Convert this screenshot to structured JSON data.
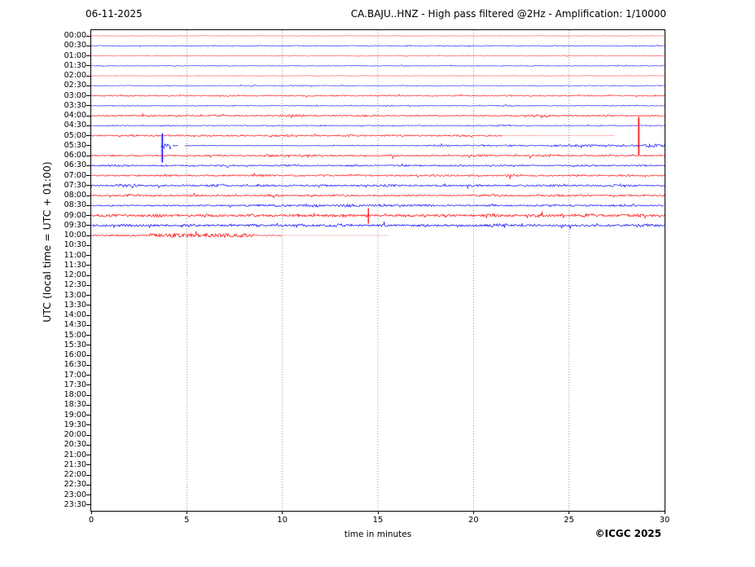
{
  "chart_data": {
    "type": "helicorder-seismogram",
    "date": "06-11-2025",
    "title": "CA.BAJU..HNZ - High pass filtered @2Hz - Amplification: 1/10000",
    "ylabel": "UTC (local time = UTC + 01:00)",
    "xlabel": "time in minutes",
    "credit": "©ICGC 2025",
    "x_range_minutes": [
      0,
      30
    ],
    "x_ticks": [
      0,
      5,
      10,
      15,
      20,
      25,
      30
    ],
    "grid_minutes": [
      5,
      10,
      15,
      20,
      25
    ],
    "minutes_per_row": 30,
    "trace_colors": {
      "r": "#ff0000",
      "b": "#0000ff"
    },
    "halo_colors": {
      "r": "#ffaaaa",
      "b": "#aaaaff"
    },
    "rows": [
      {
        "t": "00:00",
        "c": "r",
        "segs": [
          [
            0,
            30,
            0.35,
            0.5
          ]
        ],
        "bursts": []
      },
      {
        "t": "00:30",
        "c": "b",
        "segs": [
          [
            0,
            30,
            0.45,
            0.7
          ]
        ],
        "bursts": [
          [
            9,
            0.4,
            0.3
          ],
          [
            19,
            0.4,
            0.3
          ]
        ]
      },
      {
        "t": "01:00",
        "c": "r",
        "segs": [
          [
            0,
            30,
            0.45,
            0.55
          ]
        ],
        "bursts": [
          [
            14,
            0.4,
            0.3
          ]
        ]
      },
      {
        "t": "01:30",
        "c": "b",
        "segs": [
          [
            0,
            30,
            0.5,
            0.65
          ]
        ],
        "bursts": [
          [
            7,
            0.4,
            0.3
          ],
          [
            23,
            0.4,
            0.3
          ]
        ]
      },
      {
        "t": "02:00",
        "c": "r",
        "segs": [
          [
            0,
            30,
            0.4,
            0.5
          ]
        ],
        "bursts": []
      },
      {
        "t": "02:30",
        "c": "b",
        "segs": [
          [
            0,
            30,
            0.5,
            0.65
          ]
        ],
        "bursts": [
          [
            11,
            0.4,
            0.3
          ]
        ]
      },
      {
        "t": "03:00",
        "c": "r",
        "segs": [
          [
            0,
            30,
            0.65,
            0.75
          ]
        ],
        "bursts": [
          [
            7,
            0.4,
            0.4
          ],
          [
            13,
            0.3,
            0.4
          ],
          [
            22,
            0.4,
            0.4
          ]
        ]
      },
      {
        "t": "03:30",
        "c": "b",
        "segs": [
          [
            0,
            30,
            0.5,
            0.7
          ]
        ],
        "bursts": [
          [
            15.5,
            0.3,
            0.5
          ],
          [
            21.8,
            0.4,
            0.6
          ]
        ]
      },
      {
        "t": "04:00",
        "c": "r",
        "segs": [
          [
            0,
            30,
            0.75,
            0.8
          ]
        ],
        "bursts": [
          [
            3,
            0.5,
            0.5
          ],
          [
            10.8,
            0.5,
            0.8
          ],
          [
            14.3,
            0.3,
            0.6
          ],
          [
            23.3,
            0.6,
            1.0
          ],
          [
            27,
            0.3,
            0.5
          ]
        ]
      },
      {
        "t": "04:30",
        "c": "b",
        "segs": [
          [
            0,
            30,
            0.55,
            0.7
          ]
        ],
        "bursts": [
          [
            4,
            0.4,
            0.4
          ],
          [
            12,
            0.3,
            0.4
          ],
          [
            21.5,
            0.4,
            0.7
          ],
          [
            26.5,
            0.3,
            0.4
          ]
        ]
      },
      {
        "t": "05:00",
        "c": "r",
        "segs": [
          [
            0,
            21.5,
            0.8,
            0.8
          ],
          [
            21.5,
            27.4,
            0.12,
            0.35
          ]
        ],
        "bursts": [
          [
            2,
            0.5,
            0.5
          ],
          [
            6,
            0.4,
            0.5
          ],
          [
            10,
            0.5,
            0.6
          ],
          [
            13.5,
            0.4,
            0.5
          ],
          [
            16,
            0.3,
            0.4
          ],
          [
            19.5,
            0.4,
            0.5
          ]
        ],
        "spikes": [
          {
            "m": 28.65,
            "up": 23,
            "down": 24,
            "halo": true
          }
        ]
      },
      {
        "t": "05:30",
        "c": "b",
        "segs": [
          [
            3.64,
            4.2,
            2.2,
            0.85
          ],
          [
            4.27,
            4.55,
            0.12,
            0.9
          ],
          [
            4.9,
            10,
            0.28,
            0.8
          ],
          [
            10,
            17,
            0.45,
            0.75
          ],
          [
            17,
            24,
            0.7,
            0.75
          ],
          [
            24,
            30,
            1.1,
            0.8
          ]
        ],
        "bursts": [
          [
            13.8,
            0.3,
            0.4
          ],
          [
            18.5,
            0.3,
            0.5
          ],
          [
            20.5,
            0.3,
            0.6
          ],
          [
            22,
            0.3,
            0.5
          ],
          [
            25.5,
            0.4,
            0.8
          ],
          [
            27,
            0.3,
            0.6
          ],
          [
            29.3,
            0.5,
            1.2
          ]
        ],
        "spikes": [
          {
            "m": 3.72,
            "up": 15,
            "down": 21,
            "halo": true
          }
        ]
      },
      {
        "t": "06:00",
        "c": "r",
        "segs": [
          [
            0,
            30,
            0.75,
            0.8
          ]
        ],
        "bursts": [
          [
            1.2,
            0.3,
            0.5
          ],
          [
            6.3,
            0.4,
            0.6
          ],
          [
            9.4,
            0.3,
            0.9
          ],
          [
            11.5,
            0.4,
            0.7
          ],
          [
            15.7,
            0.3,
            0.6
          ],
          [
            20.3,
            0.5,
            0.8
          ],
          [
            23,
            0.3,
            0.6
          ],
          [
            27,
            0.4,
            0.6
          ]
        ]
      },
      {
        "t": "06:30",
        "c": "b",
        "segs": [
          [
            0,
            30,
            0.75,
            0.8
          ]
        ],
        "bursts": [
          [
            1.5,
            0.7,
            0.9
          ],
          [
            3.8,
            0.3,
            0.6
          ],
          [
            7,
            0.3,
            0.5
          ],
          [
            10.5,
            0.4,
            0.6
          ],
          [
            13.8,
            0.4,
            0.7
          ],
          [
            16.5,
            0.3,
            0.5
          ],
          [
            19,
            0.4,
            0.6
          ],
          [
            21.5,
            0.3,
            0.5
          ],
          [
            26,
            0.4,
            0.6
          ],
          [
            29,
            0.3,
            0.5
          ]
        ]
      },
      {
        "t": "07:00",
        "c": "r",
        "segs": [
          [
            0,
            30,
            0.85,
            0.8
          ]
        ],
        "bursts": [
          [
            4,
            0.4,
            0.5
          ],
          [
            9,
            0.4,
            0.6
          ],
          [
            12,
            0.3,
            0.5
          ],
          [
            14,
            0.3,
            0.6
          ],
          [
            18,
            0.4,
            0.6
          ],
          [
            22,
            0.4,
            0.7
          ],
          [
            25.5,
            0.3,
            0.6
          ],
          [
            28,
            0.3,
            0.5
          ]
        ]
      },
      {
        "t": "07:30",
        "c": "b",
        "segs": [
          [
            0,
            30,
            0.95,
            0.8
          ]
        ],
        "bursts": [
          [
            1.9,
            0.6,
            1.1
          ],
          [
            6.5,
            0.4,
            0.7
          ],
          [
            9,
            0.3,
            0.6
          ],
          [
            12,
            0.4,
            0.6
          ],
          [
            15.5,
            0.4,
            0.7
          ],
          [
            20,
            0.4,
            0.7
          ],
          [
            24,
            0.4,
            0.6
          ],
          [
            27.5,
            0.4,
            0.7
          ]
        ]
      },
      {
        "t": "08:00",
        "c": "r",
        "segs": [
          [
            0,
            30,
            0.9,
            0.8
          ]
        ],
        "bursts": [
          [
            2,
            0.4,
            0.6
          ],
          [
            5.5,
            0.3,
            0.6
          ],
          [
            9.5,
            0.4,
            0.7
          ],
          [
            13,
            0.4,
            0.6
          ],
          [
            17,
            0.3,
            0.5
          ],
          [
            21,
            0.5,
            0.9
          ],
          [
            24.5,
            0.4,
            0.7
          ],
          [
            28,
            0.4,
            0.6
          ]
        ]
      },
      {
        "t": "08:30",
        "c": "b",
        "segs": [
          [
            0,
            8,
            0.8,
            0.8
          ],
          [
            8,
            18,
            1.2,
            0.8
          ],
          [
            18,
            30,
            0.9,
            0.8
          ]
        ],
        "bursts": [
          [
            5.8,
            0.3,
            0.5
          ],
          [
            9.8,
            0.4,
            0.6
          ],
          [
            11.5,
            0.4,
            0.7
          ],
          [
            13.5,
            0.5,
            0.8
          ],
          [
            15.3,
            0.4,
            0.7
          ],
          [
            21,
            0.4,
            0.6
          ],
          [
            24,
            0.4,
            0.6
          ],
          [
            27.8,
            0.4,
            0.7
          ]
        ]
      },
      {
        "t": "09:00",
        "c": "r",
        "segs": [
          [
            0,
            30,
            1.25,
            0.85
          ]
        ],
        "bursts": [
          [
            1,
            0.4,
            0.6
          ],
          [
            3.5,
            0.5,
            0.7
          ],
          [
            6,
            0.4,
            0.6
          ],
          [
            8.5,
            0.5,
            0.8
          ],
          [
            11,
            0.4,
            0.7
          ],
          [
            13,
            0.5,
            0.8
          ],
          [
            16.5,
            0.4,
            0.6
          ],
          [
            18.5,
            0.4,
            0.7
          ],
          [
            21,
            0.5,
            0.7
          ],
          [
            23.5,
            0.5,
            0.8
          ],
          [
            26,
            0.5,
            0.9
          ],
          [
            28.5,
            0.6,
            1.0
          ]
        ],
        "spikes": [
          {
            "m": 14.5,
            "up": 9,
            "down": 10,
            "halo": false
          }
        ]
      },
      {
        "t": "09:30",
        "c": "b",
        "segs": [
          [
            0,
            30,
            1.15,
            0.85
          ]
        ],
        "bursts": [
          [
            2,
            0.4,
            0.6
          ],
          [
            5,
            0.4,
            0.6
          ],
          [
            8.5,
            0.4,
            0.7
          ],
          [
            11,
            0.4,
            0.6
          ],
          [
            13,
            0.4,
            0.7
          ],
          [
            15.5,
            0.4,
            0.6
          ],
          [
            17.5,
            0.4,
            0.7
          ],
          [
            21.3,
            0.7,
            1.1
          ],
          [
            25,
            0.4,
            0.7
          ],
          [
            28.8,
            0.6,
            1.1
          ]
        ]
      },
      {
        "t": "10:00",
        "c": "r",
        "segs": [
          [
            0,
            3,
            1.0,
            0.8
          ],
          [
            3,
            8.5,
            1.9,
            0.85
          ],
          [
            8.5,
            10,
            0.8,
            0.65
          ],
          [
            10,
            15.55,
            0.1,
            0.3
          ]
        ],
        "bursts": [
          [
            3.5,
            0.3,
            0.8
          ],
          [
            4.3,
            0.3,
            1.0
          ],
          [
            5.2,
            0.3,
            0.9
          ],
          [
            6.1,
            0.3,
            0.8
          ],
          [
            7,
            0.3,
            0.9
          ],
          [
            7.8,
            0.3,
            0.7
          ]
        ]
      },
      {
        "t": "10:30",
        "c": "b",
        "segs": []
      },
      {
        "t": "11:00",
        "c": "r",
        "segs": []
      },
      {
        "t": "11:30",
        "c": "b",
        "segs": []
      },
      {
        "t": "12:00",
        "c": "r",
        "segs": []
      },
      {
        "t": "12:30",
        "c": "b",
        "segs": []
      },
      {
        "t": "13:00",
        "c": "r",
        "segs": []
      },
      {
        "t": "13:30",
        "c": "b",
        "segs": []
      },
      {
        "t": "14:00",
        "c": "r",
        "segs": []
      },
      {
        "t": "14:30",
        "c": "b",
        "segs": []
      },
      {
        "t": "15:00",
        "c": "r",
        "segs": []
      },
      {
        "t": "15:30",
        "c": "b",
        "segs": []
      },
      {
        "t": "16:00",
        "c": "r",
        "segs": []
      },
      {
        "t": "16:30",
        "c": "b",
        "segs": []
      },
      {
        "t": "17:00",
        "c": "r",
        "segs": []
      },
      {
        "t": "17:30",
        "c": "b",
        "segs": []
      },
      {
        "t": "18:00",
        "c": "r",
        "segs": []
      },
      {
        "t": "18:30",
        "c": "b",
        "segs": []
      },
      {
        "t": "19:00",
        "c": "r",
        "segs": []
      },
      {
        "t": "19:30",
        "c": "b",
        "segs": []
      },
      {
        "t": "20:00",
        "c": "r",
        "segs": []
      },
      {
        "t": "20:30",
        "c": "b",
        "segs": []
      },
      {
        "t": "21:00",
        "c": "r",
        "segs": []
      },
      {
        "t": "21:30",
        "c": "b",
        "segs": []
      },
      {
        "t": "22:00",
        "c": "r",
        "segs": []
      },
      {
        "t": "22:30",
        "c": "b",
        "segs": []
      },
      {
        "t": "23:00",
        "c": "r",
        "segs": []
      },
      {
        "t": "23:30",
        "c": "b",
        "segs": []
      }
    ]
  }
}
